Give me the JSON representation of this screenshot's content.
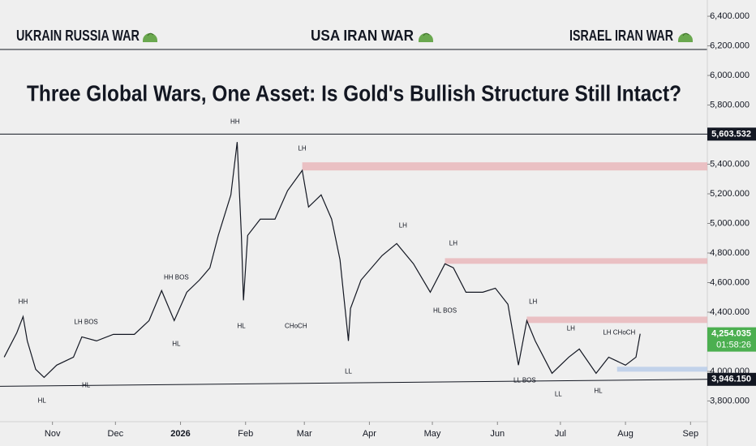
{
  "chart_data": {
    "type": "line",
    "headlines": [
      "UKRAIN RUSSIA WAR",
      "USA IRAN WAR",
      "ISRAEL IRAN WAR"
    ],
    "title": "Three Global Wars, One Asset: Is Gold's Bullish Structure Still Intact?",
    "xlim": [
      6,
      343
    ],
    "xticks": [
      {
        "value": 31,
        "label": "Nov"
      },
      {
        "value": 61,
        "label": "Dec"
      },
      {
        "value": 92,
        "label": "2026"
      },
      {
        "value": 123,
        "label": "Feb"
      },
      {
        "value": 151,
        "label": "Mar"
      },
      {
        "value": 182,
        "label": "Apr"
      },
      {
        "value": 212,
        "label": "May"
      },
      {
        "value": 243,
        "label": "Jun"
      },
      {
        "value": 273,
        "label": "Jul"
      },
      {
        "value": 304,
        "label": "Aug"
      },
      {
        "value": 335,
        "label": "Sep"
      }
    ],
    "ylim": [
      3660,
      6510
    ],
    "yticks": [
      {
        "value": 3800,
        "label": "3,800.000"
      },
      {
        "value": 4000,
        "label": "4,000.000"
      },
      {
        "value": 4200,
        "label": "4,200.000"
      },
      {
        "value": 4400,
        "label": "4,400.000"
      },
      {
        "value": 4600,
        "label": "4,600.000"
      },
      {
        "value": 4800,
        "label": "4,800.000"
      },
      {
        "value": 5000,
        "label": "5,000.000"
      },
      {
        "value": 5200,
        "label": "5,200.000"
      },
      {
        "value": 5400,
        "label": "5,400.000"
      },
      {
        "value": 5600,
        "label": "5,600.000"
      },
      {
        "value": 5800,
        "label": "5,800.000"
      },
      {
        "value": 6000,
        "label": "6,000.000"
      },
      {
        "value": 6200,
        "label": "6,200.000"
      },
      {
        "value": 6400,
        "label": "6,400.000"
      }
    ],
    "series": [
      {
        "color": "#131722",
        "x": [
          8,
          14,
          17,
          19,
          23,
          27,
          33,
          41,
          45,
          52,
          60,
          70,
          77,
          83,
          89,
          95,
          101,
          106,
          110,
          116,
          119,
          121,
          122,
          124,
          130,
          137,
          143,
          150,
          153,
          159,
          164,
          168,
          172,
          173,
          178,
          188,
          195,
          203,
          211,
          218,
          222,
          228,
          236,
          242,
          248,
          253,
          257,
          261,
          269,
          277,
          282,
          290,
          296,
          304,
          309,
          311
        ],
        "values": [
          4096,
          4261,
          4370,
          4206,
          4014,
          3959,
          4042,
          4096,
          4233,
          4206,
          4250,
          4250,
          4343,
          4546,
          4343,
          4535,
          4617,
          4700,
          4919,
          5193,
          5550,
          4919,
          4480,
          4919,
          5029,
          5029,
          5221,
          5358,
          5111,
          5193,
          5029,
          4754,
          4206,
          4425,
          4617,
          4782,
          4864,
          4727,
          4535,
          4727,
          4700,
          4535,
          4535,
          4562,
          4453,
          4042,
          4343,
          4206,
          3987,
          4096,
          4151,
          3987,
          4096,
          4042,
          4096,
          4254.035
        ]
      }
    ],
    "zones": [
      {
        "from": 150,
        "top": 5413,
        "bottom": 5358,
        "color": "#e8b4b8"
      },
      {
        "from": 218,
        "top": 4765,
        "bottom": 4727,
        "color": "#e8b4b8"
      },
      {
        "from": 257,
        "top": 4370,
        "bottom": 4327,
        "color": "#e8b4b8"
      },
      {
        "from": 300,
        "top": 4031,
        "bottom": 3998,
        "color": "#b6cbe8"
      }
    ],
    "resistance": 5603.532,
    "support_line": {
      "x": [
        6,
        343
      ],
      "values": [
        3899,
        3946.15
      ]
    },
    "annotations": [
      {
        "text": "HH",
        "x": 17,
        "y": 4469
      },
      {
        "text": "HH",
        "x": 118,
        "y": 5687
      },
      {
        "text": "LH",
        "x": 150,
        "y": 5506
      },
      {
        "text": "LH",
        "x": 198,
        "y": 4985
      },
      {
        "text": "LH",
        "x": 222,
        "y": 4864
      },
      {
        "text": "LH",
        "x": 260,
        "y": 4469
      },
      {
        "text": "LH",
        "x": 278,
        "y": 4288
      },
      {
        "text": "LH  CHoCH",
        "x": 301,
        "y": 4261
      },
      {
        "text": "HH  BOS",
        "x": 90,
        "y": 4634
      },
      {
        "text": "LH    BOS",
        "x": 47,
        "y": 4332
      },
      {
        "text": "HL",
        "x": 26,
        "y": 3800
      },
      {
        "text": "HL",
        "x": 47,
        "y": 3904
      },
      {
        "text": "HL",
        "x": 90,
        "y": 4184
      },
      {
        "text": "HL",
        "x": 121,
        "y": 4305
      },
      {
        "text": "CHoCH",
        "x": 147,
        "y": 4305
      },
      {
        "text": "LL",
        "x": 172,
        "y": 3998
      },
      {
        "text": "HL    BOS",
        "x": 218,
        "y": 4409
      },
      {
        "text": "LL   BOS",
        "x": 256,
        "y": 3937
      },
      {
        "text": "LL",
        "x": 272,
        "y": 3844
      },
      {
        "text": "HL",
        "x": 291,
        "y": 3866
      }
    ],
    "price_tags": [
      {
        "value": 5603.532,
        "label": "5,603.532",
        "color": "#131722"
      },
      {
        "value": 4254.035,
        "label": "4,254.035",
        "color": "#4caf50",
        "countdown": "01:58:26"
      },
      {
        "value": 3946.15,
        "label": "3,946.150",
        "color": "#131722"
      }
    ]
  }
}
